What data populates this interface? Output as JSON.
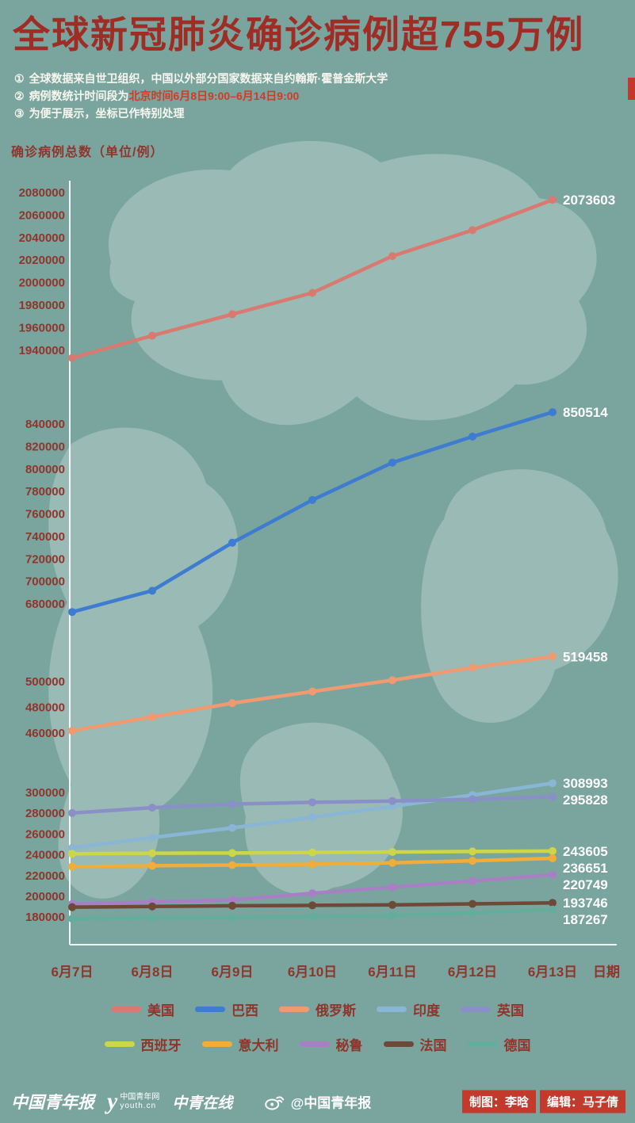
{
  "header": {
    "title": "全球新冠肺炎确诊病例超755万例",
    "notes": [
      {
        "marker": "①",
        "text": "全球数据来自世卫组织，中国以外部分国家数据来自约翰斯·霍普金斯大学",
        "highlight": ""
      },
      {
        "marker": "②",
        "text": "病例数统计时间段为",
        "highlight": "北京时间6月8日9:00–6月14日9:00"
      },
      {
        "marker": "③",
        "text": "为便于展示，坐标已作特别处理",
        "highlight": ""
      }
    ]
  },
  "chart_data": {
    "type": "line",
    "title": "全球新冠肺炎确诊病例超755万例",
    "ylabel": "确诊病例总数（单位/例）",
    "xlabel": "日期",
    "axis_note": "broken y-axis (坐标已作特别处理)",
    "grid": false,
    "legend_position": "bottom",
    "x": [
      "6月7日",
      "6月8日",
      "6月9日",
      "6月10日",
      "6月11日",
      "6月12日",
      "6月13日"
    ],
    "y_segments": [
      {
        "ticks": [
          2080000,
          2060000,
          2040000,
          2020000,
          2000000,
          1980000,
          1960000,
          1940000
        ]
      },
      {
        "ticks": [
          840000,
          820000,
          800000,
          780000,
          760000,
          740000,
          720000,
          700000,
          680000
        ]
      },
      {
        "ticks": [
          500000,
          480000,
          460000
        ]
      },
      {
        "ticks": [
          300000,
          280000,
          260000,
          240000,
          220000,
          200000,
          180000
        ]
      }
    ],
    "series": [
      {
        "name": "美国",
        "color": "#d97a70",
        "end_label": "2073603",
        "values": [
          1933051,
          1952843,
          1971865,
          1990920,
          2023590,
          2046660,
          2073603
        ]
      },
      {
        "name": "巴西",
        "color": "#3d7cd0",
        "end_label": "850514",
        "values": [
          672846,
          691758,
          734435,
          772416,
          805649,
          828810,
          850514
        ]
      },
      {
        "name": "俄罗斯",
        "color": "#ef9a70",
        "end_label": "519458",
        "values": [
          461790,
          472462,
          483222,
          492302,
          501104,
          510761,
          519458
        ]
      },
      {
        "name": "印度",
        "color": "#8ab6d6",
        "end_label": "308993",
        "values": [
          246628,
          256611,
          265928,
          276146,
          286605,
          297535,
          308993
        ]
      },
      {
        "name": "英国",
        "color": "#8a8fc7",
        "end_label": "295828",
        "values": [
          280236,
          285416,
          288859,
          290581,
          291815,
          293486,
          295828
        ]
      },
      {
        "name": "西班牙",
        "color": "#ccd646",
        "end_label": "243605",
        "values": [
          240978,
          241550,
          241717,
          242280,
          242707,
          243209,
          243605
        ]
      },
      {
        "name": "意大利",
        "color": "#f0ad3a",
        "end_label": "236651",
        "values": [
          228658,
          229455,
          230158,
          230899,
          232248,
          234210,
          236651
        ]
      },
      {
        "name": "秘鲁",
        "color": "#a87fc4",
        "end_label": "220749",
        "values": [
          192677,
          194606,
          196515,
          202936,
          208823,
          214788,
          220749
        ]
      },
      {
        "name": "法国",
        "color": "#6d4a37",
        "end_label": "193746",
        "values": [
          189569,
          190300,
          190935,
          191313,
          191747,
          192740,
          193746
        ]
      },
      {
        "name": "德国",
        "color": "#63ad9d",
        "end_label": "187267",
        "values": [
          178473,
          179002,
          179564,
          180458,
          181524,
          183979,
          187267
        ]
      }
    ],
    "legend_rows": [
      [
        "美国",
        "巴西",
        "俄罗斯",
        "印度",
        "英国"
      ],
      [
        "西班牙",
        "意大利",
        "秘鲁",
        "法国",
        "德国"
      ]
    ]
  },
  "footer": {
    "logo1": "中国青年报",
    "logo2_y": "y",
    "logo2_cn": "中国青年网",
    "logo2_en": "youth.cn",
    "logo3": "中青在线",
    "weibo_handle": "@中国青年报",
    "credit_design": "制图：李晗",
    "credit_editor": "编辑：马子倩"
  },
  "colors": {
    "background": "#7aa59e",
    "title_red": "#9e2d26",
    "note_white": "#f7f6ef",
    "highlight_red": "#d23a28",
    "axis_text": "#8f352c",
    "end_label_text": "#ffffff",
    "credit_chip": "#c3392c"
  }
}
